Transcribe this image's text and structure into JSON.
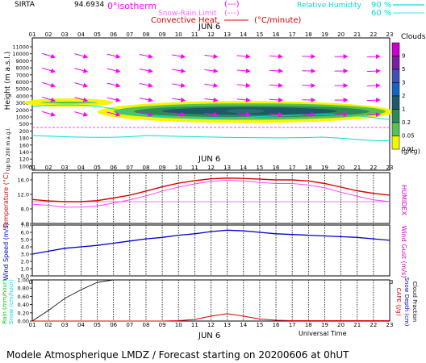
{
  "station": "SIRTA",
  "header_coord": "94.6934",
  "legend": {
    "isotherm": "0°isotherm",
    "isotherm_style": "(---)",
    "snow_rain": "Snow-Rain Limit",
    "snow_rain_style": "(---)",
    "convective": "Convective Heat.",
    "convective_units": "(°C/minute)",
    "humidity": "Relative Humidity",
    "hum_90": "90 %",
    "hum_60": "60 %"
  },
  "date_label": "JUN  6",
  "xlabel": "Universal Time",
  "footer": "Modele Atmospherique LMDZ / Forecast starting on 20200606 at 0hUT",
  "colors": {
    "magenta": "#ff00ff",
    "red": "#dd0000",
    "blue": "#0000cc",
    "cyan": "#00dddd",
    "green": "#00cc00",
    "cloud_dark": "#1c5a6a"
  },
  "chart_data": [
    {
      "type": "heatmap",
      "name": "clouds",
      "hours": [
        "01",
        "02",
        "03",
        "04",
        "05",
        "06",
        "07",
        "08",
        "09",
        "10",
        "11",
        "12",
        "13",
        "14",
        "15",
        "16",
        "17",
        "18",
        "19",
        "20",
        "21",
        "22",
        "23"
      ],
      "ylabel": "Height (m a.s.l.)",
      "ylabel_low": "Up to 200 m a.g.l.",
      "y_ticks": [
        "11000",
        "10000",
        "9000",
        "8000",
        "7000",
        "6000",
        "5000",
        "4000",
        "3000",
        "2000",
        "1000",
        "500",
        "200",
        "180",
        "160",
        "140",
        "120",
        "100"
      ],
      "colorbar_title": "Clouds",
      "colorbar_labels": [
        "9",
        "5",
        "3",
        "2",
        "1",
        "0.2",
        "0.05",
        "0.01"
      ],
      "colorbar_colors": [
        "#cc00cc",
        "#7b1fa2",
        "#3f51b5",
        "#1565c0",
        "#1c5a6a",
        "#2e8b57",
        "#55c255",
        "#f5f500"
      ],
      "colorbar_unit": "(g/kg)",
      "cloud_layers_m": [
        {
          "from_hour": 1,
          "to_hour": 5,
          "base": 2800,
          "top": 3300
        },
        {
          "from_hour": 8,
          "to_hour": 22,
          "base": 1300,
          "top": 2600
        }
      ]
    },
    {
      "type": "line",
      "name": "temperature",
      "ylabel": "Temperature (°C)",
      "ylabel_right": "HUMIDEX",
      "ylim": [
        4,
        18
      ],
      "y_ticks": [
        "16.0",
        "12.0",
        "8.0",
        "4.0"
      ],
      "series": [
        {
          "name": "Temperature",
          "values": [
            10.6,
            10.2,
            10.0,
            10.0,
            10.3,
            11.0,
            11.8,
            12.9,
            14.1,
            15.1,
            15.8,
            16.3,
            16.5,
            16.4,
            16.2,
            16.0,
            16.0,
            15.7,
            15.0,
            14.0,
            13.0,
            12.3,
            11.8
          ]
        },
        {
          "name": "HUMIDEX",
          "values": [
            9.3,
            9.0,
            8.5,
            8.5,
            8.8,
            9.6,
            10.5,
            11.6,
            12.9,
            14.0,
            14.9,
            15.6,
            15.9,
            15.7,
            15.3,
            15.0,
            15.0,
            14.6,
            13.8,
            12.6,
            11.5,
            10.5,
            10.0
          ]
        }
      ]
    },
    {
      "type": "line",
      "name": "wind",
      "ylabel": "Wind Speed (m/s)",
      "ylabel_right": "Wind Gust (m/s)",
      "ylim": [
        0,
        7
      ],
      "y_ticks": [
        "7.0",
        "6.0",
        "5.0",
        "4.0",
        "3.0",
        "2.0",
        "1.0",
        "0.0"
      ],
      "series": [
        {
          "name": "Wind Speed",
          "values": [
            3.0,
            3.4,
            3.8,
            4.0,
            4.2,
            4.5,
            4.8,
            5.1,
            5.3,
            5.6,
            5.8,
            6.1,
            6.3,
            6.2,
            6.0,
            5.8,
            5.7,
            5.6,
            5.5,
            5.4,
            5.3,
            5.1,
            4.9
          ]
        }
      ]
    },
    {
      "type": "line",
      "name": "precipitation",
      "ylabel_left": [
        "Rain (mm/hour)",
        "Snow (cm/hour)"
      ],
      "ylabel_right": [
        "CAPE (J/g)",
        "Snow Depth (cm)",
        "Cloud Fraction"
      ],
      "ylim": [
        0,
        1
      ],
      "y_ticks": [
        "1.00",
        "0.80",
        "0.60",
        "0.40",
        "0.20",
        "0.00"
      ],
      "series": [
        {
          "name": "Cloud Fraction",
          "values": [
            0.0,
            0.26,
            0.55,
            0.76,
            0.94,
            1.0,
            1.0,
            1.0,
            1.0,
            1.0,
            1.0,
            1.0,
            1.0,
            1.0,
            1.0,
            1.0,
            1.0,
            1.0,
            1.0,
            1.0,
            1.0,
            1.0,
            1.0
          ]
        },
        {
          "name": "CAPE",
          "values": [
            0,
            0,
            0,
            0,
            0,
            0,
            0,
            0,
            0,
            0.01,
            0.04,
            0.12,
            0.18,
            0.12,
            0.05,
            0.02,
            0.01,
            0.01,
            0.01,
            0.01,
            0.01,
            0.01,
            0.01
          ]
        }
      ]
    }
  ]
}
